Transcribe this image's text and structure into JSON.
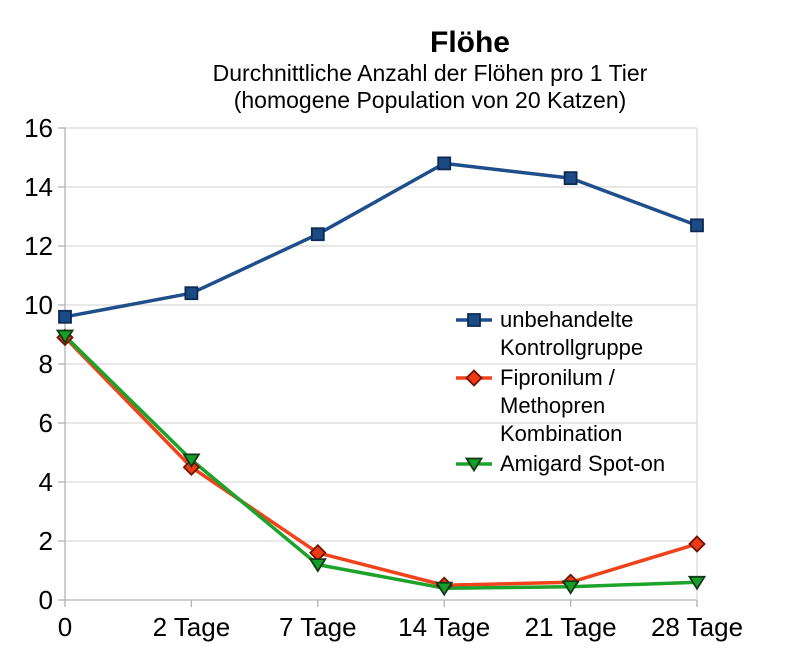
{
  "chart_data": {
    "type": "line",
    "title": "Flöhe",
    "subtitle_line1": "Durchnittliche Anzahl der Flöhen pro 1 Tier",
    "subtitle_line2": "(homogene Population von 20 Katzen)",
    "categories": [
      "0",
      "2 Tage",
      "7 Tage",
      "14 Tage",
      "21 Tage",
      "28 Tage"
    ],
    "series": [
      {
        "name": "unbehandelte Kontrollgruppe",
        "marker": "square",
        "line_color": "#1F4E8C",
        "marker_fill": "#1B4A85",
        "marker_stroke": "#0D2B52",
        "values": [
          9.6,
          10.4,
          12.4,
          14.8,
          14.3,
          12.7
        ]
      },
      {
        "name": "Fipronilum / Methopren Kombination",
        "marker": "diamond",
        "line_color": "#F0431C",
        "marker_fill": "#ED3A12",
        "marker_stroke": "#701300",
        "values": [
          8.9,
          4.5,
          1.6,
          0.5,
          0.6,
          1.9
        ]
      },
      {
        "name": "Amigard Spot-on",
        "marker": "triangle-down",
        "line_color": "#1CA32B",
        "marker_fill": "#14A028",
        "marker_stroke": "#123A16",
        "values": [
          8.95,
          4.75,
          1.2,
          0.4,
          0.45,
          0.6
        ]
      }
    ],
    "ylim": [
      0,
      16
    ],
    "ytick_step": 2,
    "grid": "horizontal",
    "legend_position": "right-inside",
    "axis_color": "#B3B3B3",
    "grid_color": "#D9D9D9",
    "border_color": "#D9D9D9",
    "tick_color": "#B3B3B3"
  }
}
